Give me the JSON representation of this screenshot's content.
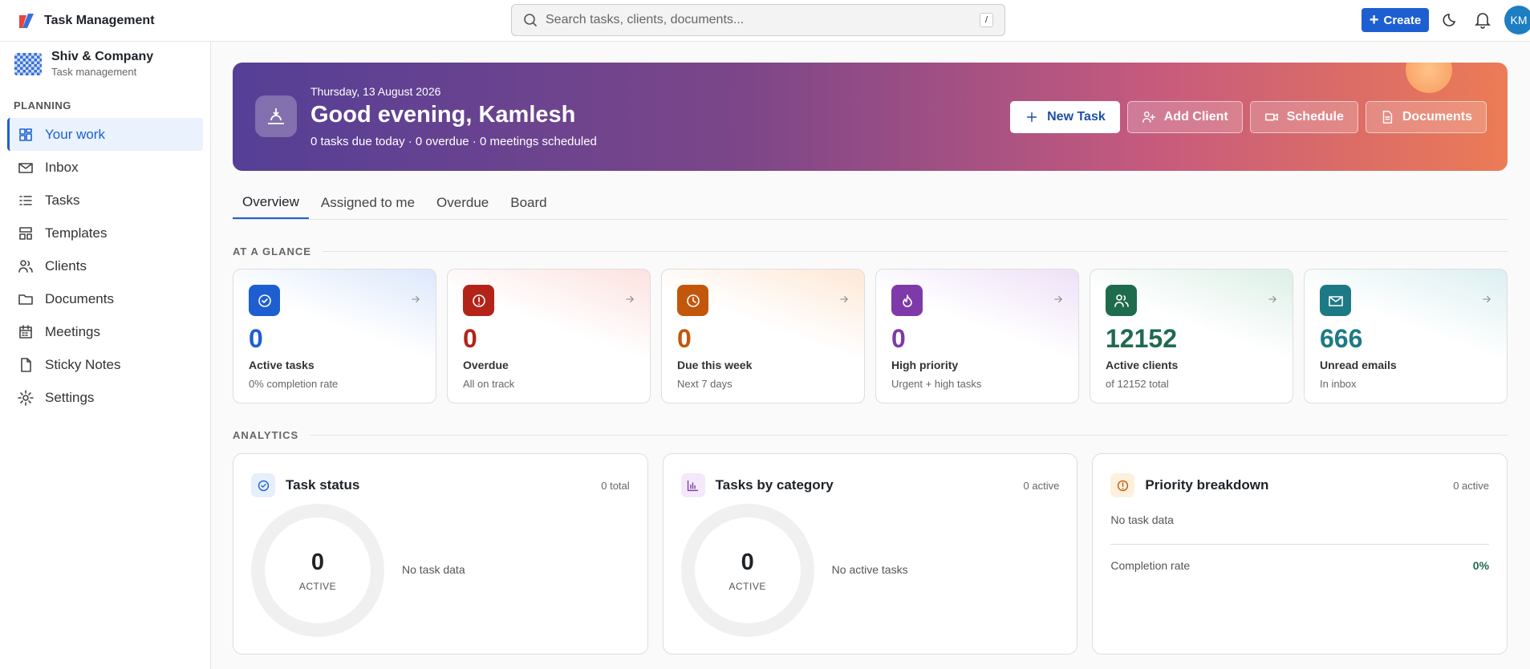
{
  "topbar": {
    "app_name": "Task Management",
    "search_placeholder": "Search tasks, clients, documents...",
    "search_shortcut": "/",
    "create": "Create",
    "avatar": "KM"
  },
  "sidebar": {
    "org_name": "Shiv & Company",
    "org_subtitle": "Task management",
    "section": "PLANNING",
    "items": [
      "Your work",
      "Inbox",
      "Tasks",
      "Templates",
      "Clients",
      "Documents",
      "Meetings",
      "Sticky Notes",
      "Settings"
    ]
  },
  "hero": {
    "date": "Thursday, 13 August 2026",
    "greeting": "Good evening, Kamlesh",
    "summary": "0 tasks due today · 0 overdue · 0 meetings scheduled",
    "actions": [
      "New Task",
      "Add Client",
      "Schedule",
      "Documents"
    ]
  },
  "tabs": [
    "Overview",
    "Assigned to me",
    "Overdue",
    "Board"
  ],
  "glance": {
    "title": "AT A GLANCE",
    "cards": [
      {
        "value": 0,
        "label": "Active tasks",
        "sub": "0% completion rate"
      },
      {
        "value": 0,
        "label": "Overdue",
        "sub": "All on track"
      },
      {
        "value": 0,
        "label": "Due this week",
        "sub": "Next 7 days"
      },
      {
        "value": 0,
        "label": "High priority",
        "sub": "Urgent + high tasks"
      },
      {
        "value": 12152,
        "label": "Active clients",
        "sub": "of 12152 total"
      },
      {
        "value": 666,
        "label": "Unread emails",
        "sub": "In inbox"
      }
    ]
  },
  "analytics": {
    "title": "ANALYTICS",
    "panels": [
      {
        "title": "Task status",
        "meta": "0 total",
        "center_value": 0,
        "center_label": "ACTIVE",
        "empty": "No task data"
      },
      {
        "title": "Tasks by category",
        "meta": "0 active",
        "center_value": 0,
        "center_label": "ACTIVE",
        "empty": "No active tasks"
      },
      {
        "title": "Priority breakdown",
        "meta": "0 active",
        "empty": "No task data",
        "rate_label": "Completion rate",
        "rate_value": "0%"
      }
    ]
  }
}
